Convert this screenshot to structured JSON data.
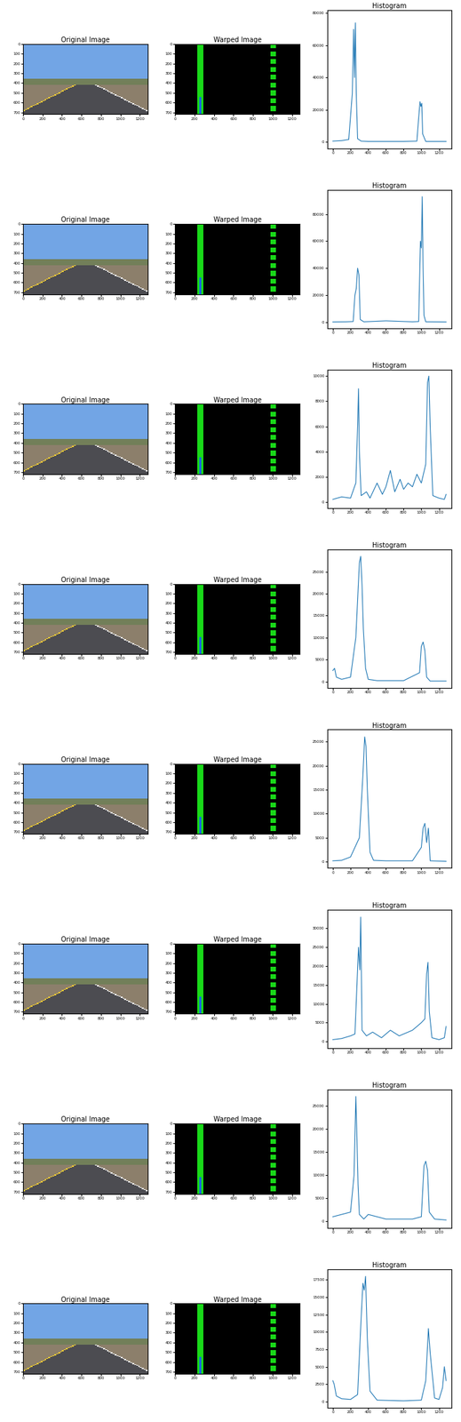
{
  "chart_data": [
    {
      "type": "image",
      "title": "Original Image",
      "xlim": [
        0,
        1280
      ],
      "ylim": [
        720,
        0
      ],
      "xticks": [
        0,
        200,
        400,
        600,
        800,
        1000,
        1200
      ],
      "yticks": [
        0,
        100,
        200,
        300,
        400,
        500,
        600,
        700
      ]
    },
    {
      "type": "image",
      "title": "Warped Image",
      "xlim": [
        0,
        1280
      ],
      "ylim": [
        720,
        0
      ],
      "xticks": [
        0,
        200,
        400,
        600,
        800,
        1000,
        1200
      ],
      "yticks": [
        0,
        100,
        200,
        300,
        400,
        500,
        600,
        700
      ]
    },
    {
      "type": "line",
      "title": "Histogram",
      "color": "#1f77b4",
      "xlim": [
        -64,
        1344
      ],
      "ylim": [
        -4000,
        82000
      ],
      "xticks": [
        0,
        200,
        400,
        600,
        800,
        1000,
        1200
      ],
      "yticks": [
        0,
        20000,
        40000,
        60000,
        80000
      ],
      "x": [
        0,
        100,
        180,
        220,
        235,
        245,
        255,
        265,
        280,
        320,
        400,
        600,
        800,
        950,
        970,
        985,
        995,
        1005,
        1015,
        1050,
        1280
      ],
      "values": [
        500,
        800,
        1500,
        30000,
        70000,
        40000,
        74000,
        30000,
        2000,
        500,
        300,
        300,
        300,
        500,
        15000,
        25000,
        22000,
        24000,
        5000,
        300,
        300
      ]
    },
    {
      "type": "image",
      "title": "Original Image",
      "xlim": [
        0,
        1280
      ],
      "ylim": [
        720,
        0
      ],
      "xticks": [
        0,
        200,
        400,
        600,
        800,
        1000,
        1200
      ],
      "yticks": [
        0,
        100,
        200,
        300,
        400,
        500,
        600,
        700
      ]
    },
    {
      "type": "image",
      "title": "Warped Image",
      "xlim": [
        0,
        1280
      ],
      "ylim": [
        720,
        0
      ],
      "xticks": [
        0,
        200,
        400,
        600,
        800,
        1000,
        1200
      ],
      "yticks": [
        0,
        100,
        200,
        300,
        400,
        500,
        600,
        700
      ]
    },
    {
      "type": "line",
      "title": "Histogram",
      "color": "#1f77b4",
      "xlim": [
        -64,
        1344
      ],
      "ylim": [
        -4500,
        98000
      ],
      "xticks": [
        0,
        200,
        400,
        600,
        800,
        1000,
        1200
      ],
      "yticks": [
        0,
        20000,
        40000,
        60000,
        80000
      ],
      "x": [
        0,
        150,
        230,
        250,
        265,
        280,
        295,
        310,
        350,
        600,
        900,
        970,
        990,
        1000,
        1010,
        1020,
        1030,
        1050,
        1280
      ],
      "values": [
        200,
        300,
        500,
        20000,
        25000,
        40000,
        35000,
        2000,
        300,
        1000,
        300,
        500,
        60000,
        55000,
        93000,
        40000,
        5000,
        300,
        200
      ]
    },
    {
      "type": "image",
      "title": "Original Image",
      "xlim": [
        0,
        1280
      ],
      "ylim": [
        720,
        0
      ],
      "xticks": [
        0,
        200,
        400,
        600,
        800,
        1000,
        1200
      ],
      "yticks": [
        0,
        100,
        200,
        300,
        400,
        500,
        600,
        700
      ]
    },
    {
      "type": "image",
      "title": "Warped Image",
      "xlim": [
        0,
        1280
      ],
      "ylim": [
        720,
        0
      ],
      "xticks": [
        0,
        200,
        400,
        600,
        800,
        1000,
        1200
      ],
      "yticks": [
        0,
        100,
        200,
        300,
        400,
        500,
        600,
        700
      ]
    },
    {
      "type": "line",
      "title": "Histogram",
      "color": "#1f77b4",
      "xlim": [
        -64,
        1344
      ],
      "ylim": [
        -500,
        10500
      ],
      "xticks": [
        0,
        200,
        400,
        600,
        800,
        1000,
        1200
      ],
      "yticks": [
        0,
        2000,
        4000,
        6000,
        8000,
        10000
      ],
      "x": [
        0,
        100,
        200,
        260,
        280,
        290,
        300,
        320,
        380,
        420,
        500,
        560,
        600,
        650,
        700,
        760,
        800,
        850,
        900,
        950,
        1000,
        1050,
        1070,
        1085,
        1100,
        1130,
        1200,
        1260,
        1280
      ],
      "values": [
        200,
        400,
        300,
        1500,
        6000,
        9000,
        4000,
        500,
        800,
        300,
        1500,
        600,
        1200,
        2500,
        800,
        1800,
        1000,
        1500,
        1200,
        2200,
        1500,
        3000,
        9500,
        10000,
        6000,
        500,
        300,
        200,
        600
      ]
    },
    {
      "type": "image",
      "title": "Original Image",
      "xlim": [
        0,
        1280
      ],
      "ylim": [
        720,
        0
      ],
      "xticks": [
        0,
        200,
        400,
        600,
        800,
        1000,
        1200
      ],
      "yticks": [
        0,
        100,
        200,
        300,
        400,
        500,
        600,
        700
      ]
    },
    {
      "type": "image",
      "title": "Warped Image",
      "xlim": [
        0,
        1280
      ],
      "ylim": [
        720,
        0
      ],
      "xticks": [
        0,
        200,
        400,
        600,
        800,
        1000,
        1200
      ],
      "yticks": [
        0,
        100,
        200,
        300,
        400,
        500,
        600,
        700
      ]
    },
    {
      "type": "line",
      "title": "Histogram",
      "color": "#1f77b4",
      "xlim": [
        -64,
        1344
      ],
      "ylim": [
        -1500,
        30000
      ],
      "xticks": [
        0,
        200,
        400,
        600,
        800,
        1000,
        1200
      ],
      "yticks": [
        0,
        5000,
        10000,
        15000,
        20000,
        25000
      ],
      "x": [
        0,
        20,
        40,
        100,
        200,
        260,
        300,
        315,
        330,
        345,
        370,
        400,
        500,
        800,
        980,
        1000,
        1020,
        1040,
        1060,
        1100,
        1280
      ],
      "values": [
        2500,
        3000,
        1000,
        500,
        1000,
        10000,
        27000,
        28500,
        22000,
        12000,
        3000,
        500,
        200,
        200,
        2000,
        8000,
        9000,
        7000,
        1000,
        100,
        100
      ]
    },
    {
      "type": "image",
      "title": "Original Image",
      "xlim": [
        0,
        1280
      ],
      "ylim": [
        720,
        0
      ],
      "xticks": [
        0,
        200,
        400,
        600,
        800,
        1000,
        1200
      ],
      "yticks": [
        0,
        100,
        200,
        300,
        400,
        500,
        600,
        700
      ]
    },
    {
      "type": "image",
      "title": "Warped Image",
      "xlim": [
        0,
        1280
      ],
      "ylim": [
        720,
        0
      ],
      "xticks": [
        0,
        200,
        400,
        600,
        800,
        1000,
        1200
      ],
      "yticks": [
        0,
        100,
        200,
        300,
        400,
        500,
        600,
        700
      ]
    },
    {
      "type": "line",
      "title": "Histogram",
      "color": "#1f77b4",
      "xlim": [
        -64,
        1344
      ],
      "ylim": [
        -1300,
        27500
      ],
      "xticks": [
        0,
        200,
        400,
        600,
        800,
        1000,
        1200
      ],
      "yticks": [
        0,
        5000,
        10000,
        15000,
        20000,
        25000
      ],
      "x": [
        0,
        100,
        200,
        300,
        340,
        360,
        375,
        390,
        420,
        460,
        600,
        900,
        1000,
        1020,
        1040,
        1060,
        1080,
        1100,
        1280
      ],
      "values": [
        200,
        300,
        1000,
        5000,
        18000,
        26000,
        24000,
        15000,
        2000,
        300,
        200,
        200,
        3000,
        7000,
        8000,
        4000,
        7000,
        200,
        100
      ]
    },
    {
      "type": "image",
      "title": "Original Image",
      "xlim": [
        0,
        1280
      ],
      "ylim": [
        720,
        0
      ],
      "xticks": [
        0,
        200,
        400,
        600,
        800,
        1000,
        1200
      ],
      "yticks": [
        0,
        100,
        200,
        300,
        400,
        500,
        600,
        700
      ]
    },
    {
      "type": "image",
      "title": "Warped Image",
      "xlim": [
        0,
        1280
      ],
      "ylim": [
        720,
        0
      ],
      "xticks": [
        0,
        200,
        400,
        600,
        800,
        1000,
        1200
      ],
      "yticks": [
        0,
        100,
        200,
        300,
        400,
        500,
        600,
        700
      ]
    },
    {
      "type": "line",
      "title": "Histogram",
      "color": "#1f77b4",
      "xlim": [
        -64,
        1344
      ],
      "ylim": [
        -1700,
        35000
      ],
      "xticks": [
        0,
        200,
        400,
        600,
        800,
        1000,
        1200
      ],
      "yticks": [
        0,
        5000,
        10000,
        15000,
        20000,
        25000,
        30000
      ],
      "x": [
        0,
        100,
        200,
        250,
        290,
        305,
        315,
        330,
        380,
        450,
        550,
        650,
        750,
        850,
        900,
        950,
        1000,
        1040,
        1060,
        1075,
        1090,
        1120,
        1200,
        1260,
        1280
      ],
      "values": [
        500,
        800,
        1500,
        2000,
        25000,
        19000,
        33000,
        3000,
        1500,
        2500,
        1000,
        3000,
        1500,
        2500,
        3000,
        4000,
        5000,
        6000,
        18000,
        21000,
        8000,
        1000,
        500,
        1000,
        4000
      ]
    },
    {
      "type": "image",
      "title": "Original Image",
      "xlim": [
        0,
        1280
      ],
      "ylim": [
        720,
        0
      ],
      "xticks": [
        0,
        200,
        400,
        600,
        800,
        1000,
        1200
      ],
      "yticks": [
        0,
        100,
        200,
        300,
        400,
        500,
        600,
        700
      ]
    },
    {
      "type": "image",
      "title": "Warped Image",
      "xlim": [
        0,
        1280
      ],
      "ylim": [
        720,
        0
      ],
      "xticks": [
        0,
        200,
        400,
        600,
        800,
        1000,
        1200
      ],
      "yticks": [
        0,
        100,
        200,
        300,
        400,
        500,
        600,
        700
      ]
    },
    {
      "type": "line",
      "title": "Histogram",
      "color": "#1f77b4",
      "xlim": [
        -64,
        1344
      ],
      "ylim": [
        -1400,
        28500
      ],
      "xticks": [
        0,
        200,
        400,
        600,
        800,
        1000,
        1200
      ],
      "yticks": [
        0,
        5000,
        10000,
        15000,
        20000,
        25000
      ],
      "x": [
        0,
        100,
        200,
        240,
        260,
        270,
        285,
        300,
        350,
        400,
        600,
        900,
        1000,
        1030,
        1050,
        1070,
        1090,
        1150,
        1280
      ],
      "values": [
        1000,
        1500,
        2000,
        10000,
        27000,
        20000,
        8000,
        1500,
        500,
        1500,
        500,
        500,
        1000,
        12000,
        13000,
        11000,
        2000,
        500,
        300
      ]
    },
    {
      "type": "image",
      "title": "Original Image",
      "xlim": [
        0,
        1280
      ],
      "ylim": [
        720,
        0
      ],
      "xticks": [
        0,
        200,
        400,
        600,
        800,
        1000,
        1200
      ],
      "yticks": [
        0,
        100,
        200,
        300,
        400,
        500,
        600,
        700
      ]
    },
    {
      "type": "image",
      "title": "Warped Image",
      "xlim": [
        0,
        1280
      ],
      "ylim": [
        720,
        0
      ],
      "xticks": [
        0,
        200,
        400,
        600,
        800,
        1000,
        1200
      ],
      "yticks": [
        0,
        100,
        200,
        300,
        400,
        500,
        600,
        700
      ]
    },
    {
      "type": "line",
      "title": "Histogram",
      "color": "#1f77b4",
      "xlim": [
        -64,
        1344
      ],
      "ylim": [
        -900,
        19000
      ],
      "xticks": [
        0,
        200,
        400,
        600,
        800,
        1000,
        1200
      ],
      "yticks": [
        0,
        2500,
        5000,
        7500,
        10000,
        12500,
        15000,
        17500
      ],
      "x": [
        0,
        15,
        40,
        100,
        200,
        280,
        320,
        340,
        355,
        370,
        390,
        420,
        500,
        800,
        1000,
        1050,
        1080,
        1100,
        1150,
        1200,
        1240,
        1260,
        1280
      ],
      "values": [
        3000,
        2500,
        800,
        400,
        300,
        1000,
        12000,
        17000,
        16000,
        18000,
        9000,
        1500,
        200,
        100,
        200,
        3000,
        10500,
        7000,
        500,
        300,
        2000,
        5000,
        3000
      ]
    }
  ]
}
